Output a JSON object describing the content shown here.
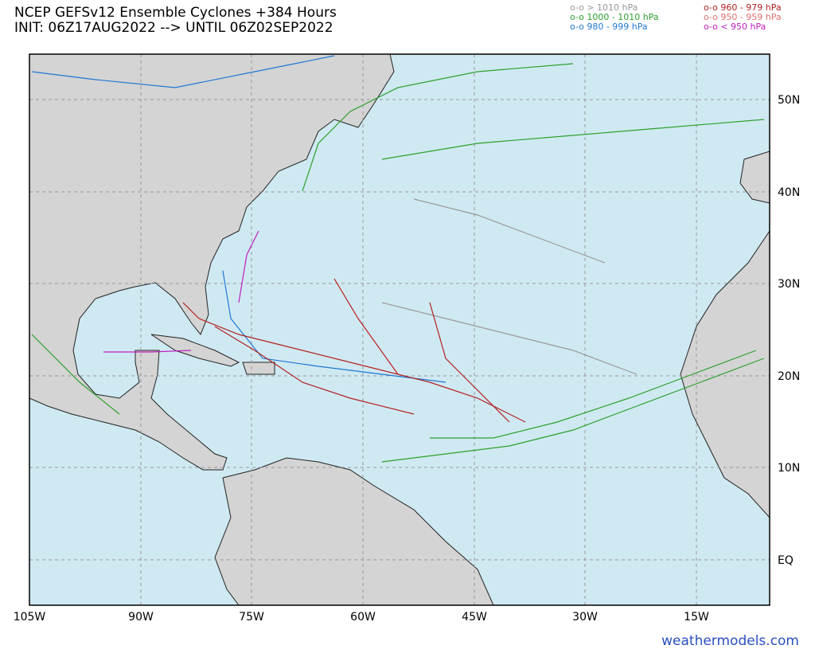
{
  "header": {
    "title": "NCEP GEFSv12 Ensemble Cyclones +384 Hours",
    "subtitle": "INIT: 06Z17AUG2022 --> UNTIL 06Z02SEP2022"
  },
  "legend": {
    "items": [
      "o-o > 1010 hPa",
      "o-o 1000 - 1010 hPa",
      "o-o 980 - 999 hPa",
      "o-o 960 - 979 hPa",
      "o-o 950 - 959 hPa",
      "o-o < 950 hPa"
    ]
  },
  "map": {
    "lon_labels": [
      "105W",
      "90W",
      "75W",
      "60W",
      "45W",
      "30W",
      "15W"
    ],
    "lat_labels": [
      "50N",
      "40N",
      "30N",
      "20N",
      "10N",
      "EQ"
    ]
  },
  "footer": {
    "credit": "weathermodels.com"
  }
}
